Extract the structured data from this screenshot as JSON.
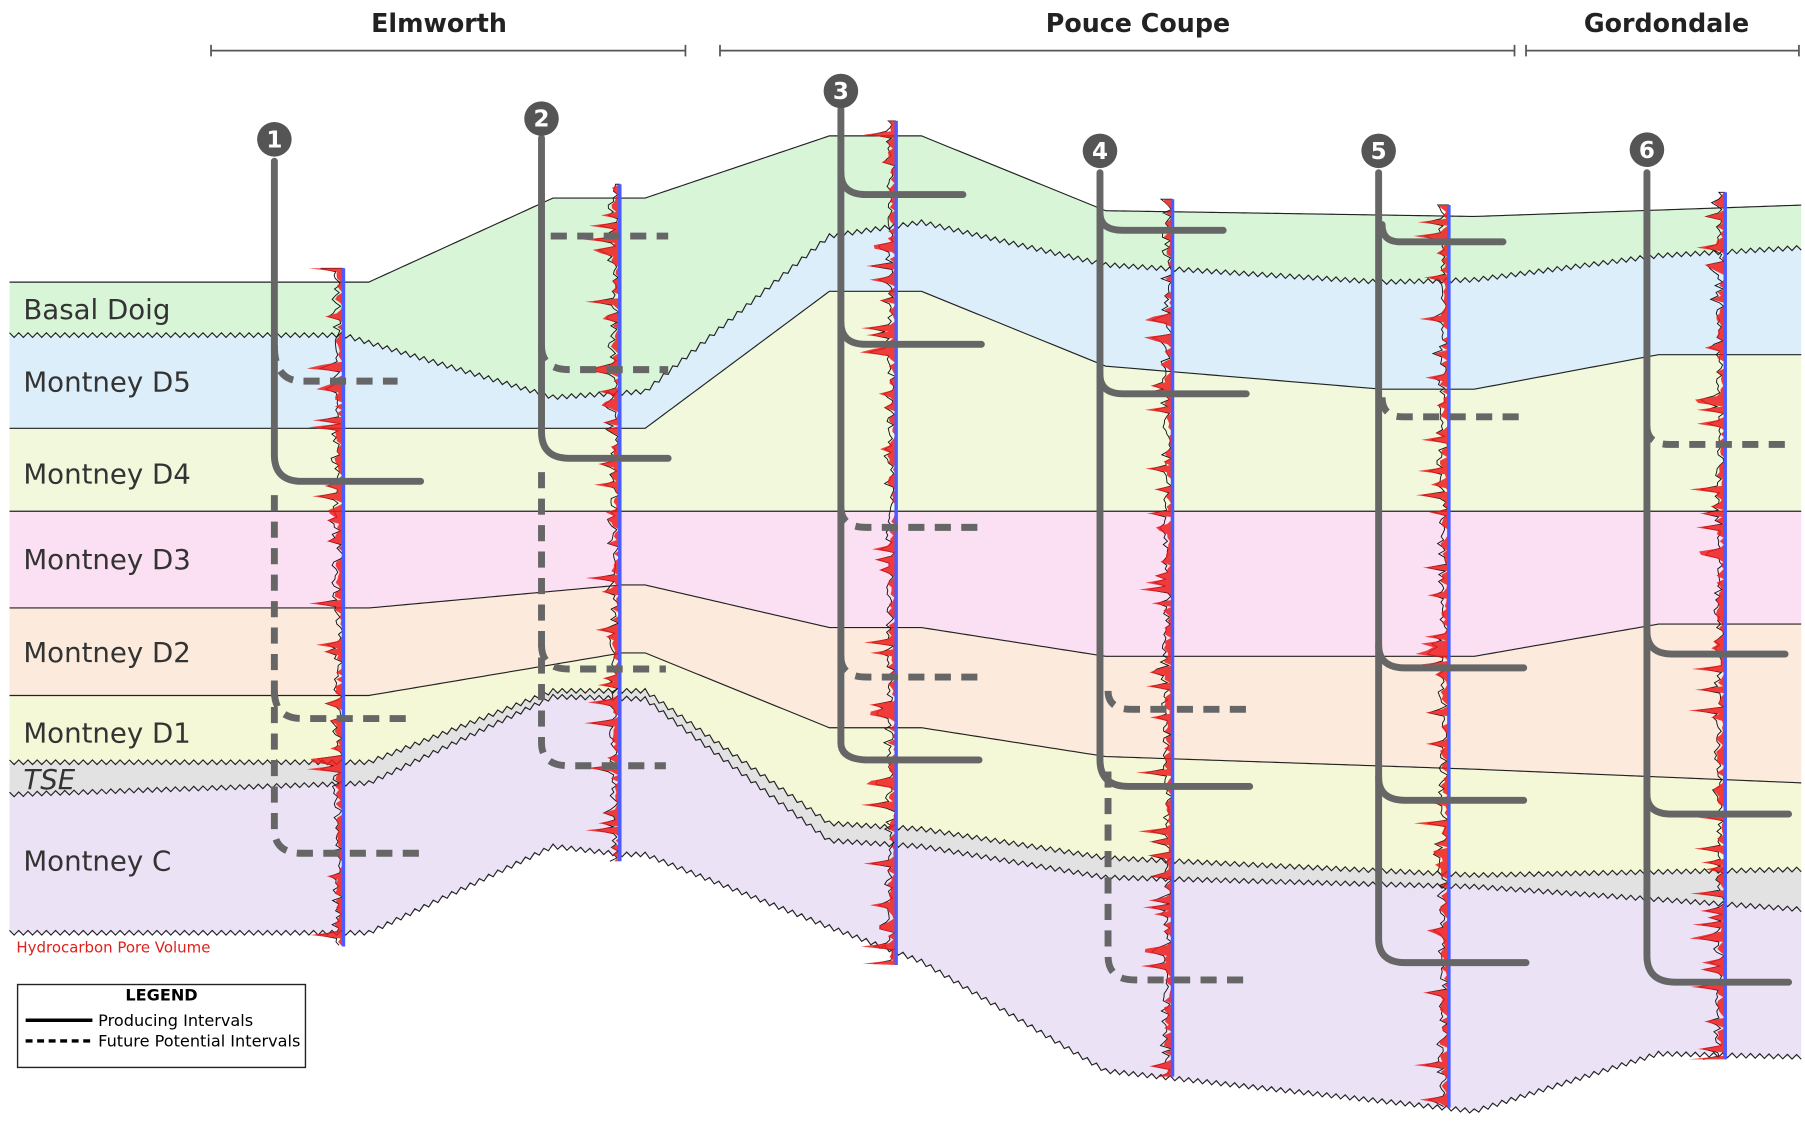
{
  "areas": [
    "Elmworth",
    "Pouce Coupe",
    "Gordondale"
  ],
  "wells": [
    "1",
    "2",
    "3",
    "4",
    "5",
    "6"
  ],
  "zones": [
    "Basal Doig",
    "Montney D5",
    "Montney D4",
    "Montney D3",
    "Montney D2",
    "Montney D1",
    "TSE",
    "Montney C"
  ],
  "log_label": "Hydrocarbon Pore Volume",
  "legend": {
    "title": "LEGEND",
    "items": [
      "Producing Intervals",
      "Future Potential Intervals"
    ]
  }
}
